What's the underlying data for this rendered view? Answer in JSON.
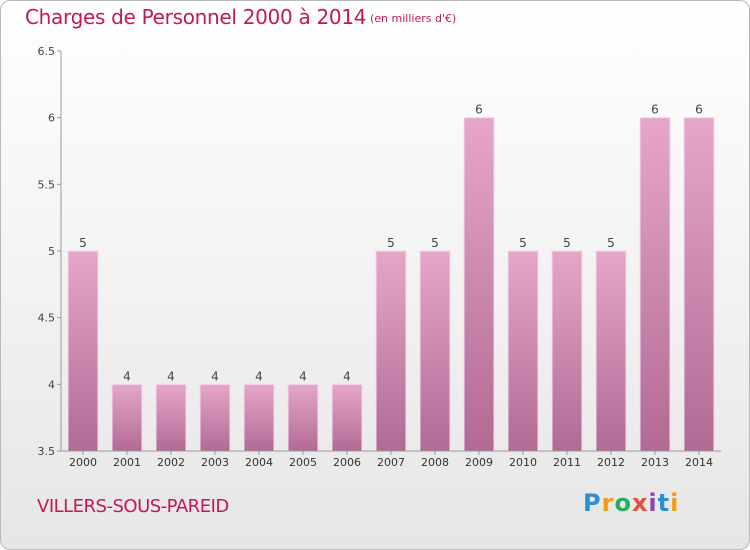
{
  "header": {
    "title": "Charges de Personnel 2000 à 2014",
    "unit": "(en milliers d'€)"
  },
  "footer": {
    "town": "VILLERS-SOUS-PAREID",
    "logo_letters": [
      "P",
      "r",
      "o",
      "x",
      "i",
      "t",
      "i"
    ],
    "logo_colors": [
      "#2a8fd4",
      "#f39c12",
      "#27ae60",
      "#e74c3c",
      "#8e44ad",
      "#2a8fd4",
      "#f39c12"
    ]
  },
  "colors": {
    "bar_top": "#e6a6cb",
    "bar_bottom": "#b06b94",
    "bar_outline": "#f7d9ea",
    "title": "#c2185b"
  },
  "chart_data": {
    "type": "bar",
    "title": "Charges de Personnel 2000 à 2014",
    "categories": [
      "2000",
      "2001",
      "2002",
      "2003",
      "2004",
      "2005",
      "2006",
      "2007",
      "2008",
      "2009",
      "2010",
      "2011",
      "2012",
      "2013",
      "2014"
    ],
    "values": [
      5,
      4,
      4,
      4,
      4,
      4,
      4,
      5,
      5,
      6,
      5,
      5,
      5,
      6,
      6
    ],
    "data_labels": [
      "5",
      "4",
      "4",
      "4",
      "4",
      "4",
      "4",
      "5",
      "5",
      "6",
      "5",
      "5",
      "5",
      "6",
      "6"
    ],
    "ylim": [
      3.5,
      6.5
    ],
    "yticks": [
      3.5,
      4,
      4.5,
      5,
      5.5,
      6,
      6.5
    ],
    "ytick_labels": [
      "3.5",
      "4",
      "4.5",
      "5",
      "5.5",
      "6",
      "6.5"
    ],
    "xlabel": "",
    "ylabel": "",
    "grid": false
  }
}
